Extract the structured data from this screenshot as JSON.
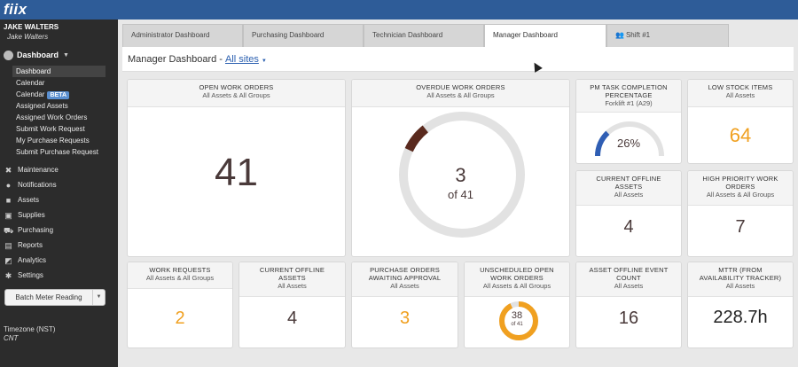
{
  "app": {
    "logo": "fiix"
  },
  "user": {
    "name": "JAKE WALTERS",
    "sub": "Jake Walters"
  },
  "sidebar": {
    "dashboard_label": "Dashboard",
    "sub_items": [
      {
        "label": "Dashboard",
        "active": true
      },
      {
        "label": "Calendar"
      },
      {
        "label": "Calendar",
        "badge": "BETA"
      },
      {
        "label": "Assigned Assets"
      },
      {
        "label": "Assigned Work Orders"
      },
      {
        "label": "Submit Work Request"
      },
      {
        "label": "My Purchase Requests"
      },
      {
        "label": "Submit Purchase Request"
      }
    ],
    "items": [
      {
        "label": "Maintenance",
        "icon": "wrench-icon"
      },
      {
        "label": "Notifications",
        "icon": "chat-bubble-icon"
      },
      {
        "label": "Assets",
        "icon": "cubes-icon"
      },
      {
        "label": "Supplies",
        "icon": "box-icon"
      },
      {
        "label": "Purchasing",
        "icon": "cart-icon"
      },
      {
        "label": "Reports",
        "icon": "chart-icon"
      },
      {
        "label": "Analytics",
        "icon": "line-chart-icon"
      },
      {
        "label": "Settings",
        "icon": "gear-icon"
      }
    ],
    "batch_button": "Batch Meter Reading",
    "timezone_label": "Timezone (NST)",
    "timezone_value": "CNT"
  },
  "tabs": [
    {
      "label": "Administrator Dashboard"
    },
    {
      "label": "Purchasing Dashboard"
    },
    {
      "label": "Technician Dashboard"
    },
    {
      "label": "Manager Dashboard",
      "active": true
    },
    {
      "label": "Shift #1",
      "icon": "group-icon"
    }
  ],
  "header": {
    "title": "Manager Dashboard",
    "dash": "-",
    "sites": "All sites"
  },
  "cards": {
    "open_wo": {
      "title": "OPEN WORK ORDERS",
      "sub": "All Assets & All Groups",
      "value": "41"
    },
    "overdue_wo": {
      "title": "OVERDUE WORK ORDERS",
      "sub": "All Assets & All Groups",
      "value": "3",
      "of": "of 41",
      "fraction": 0.0732
    },
    "pm_task": {
      "title1": "PM TASK COMPLETION",
      "title2": "PERCENTAGE",
      "sub": "Forklift #1 (A29)",
      "value": "26%",
      "fraction": 0.26
    },
    "low_stock": {
      "title": "LOW STOCK ITEMS",
      "sub": "All Assets",
      "value": "64"
    },
    "offline_assets_top": {
      "title1": "CURRENT OFFLINE",
      "title2": "ASSETS",
      "sub": "All Assets",
      "value": "4"
    },
    "high_priority": {
      "title1": "HIGH PRIORITY WORK",
      "title2": "ORDERS",
      "sub": "All Assets & All Groups",
      "value": "7"
    },
    "work_requests": {
      "title": "WORK REQUESTS",
      "sub": "All Assets & All Groups",
      "value": "2"
    },
    "offline_assets_bottom": {
      "title1": "CURRENT OFFLINE",
      "title2": "ASSETS",
      "sub": "All Assets",
      "value": "4"
    },
    "purchase_orders": {
      "title1": "PURCHASE ORDERS",
      "title2": "AWAITING APPROVAL",
      "sub": "All Assets",
      "value": "3"
    },
    "unscheduled_wo": {
      "title1": "UNSCHEDULED OPEN",
      "title2": "WORK ORDERS",
      "sub": "All Assets & All Groups",
      "value": "38",
      "of": "of 41",
      "fraction": 0.9268
    },
    "offline_events": {
      "title1": "ASSET OFFLINE EVENT",
      "title2": "COUNT",
      "sub": "All Assets",
      "value": "16"
    },
    "mttr": {
      "title1": "MTTR (FROM",
      "title2": "AVAILABILITY TRACKER)",
      "sub": "All Assets",
      "value": "228.7h"
    }
  },
  "colors": {
    "topbar": "#2e5c98",
    "sidebar": "#2c2c2c",
    "accent_orange": "#f0a020",
    "overdue_arc": "#5a2a1e",
    "gauge_blue": "#2f5eb4",
    "ring_track": "#e2e2e2"
  }
}
